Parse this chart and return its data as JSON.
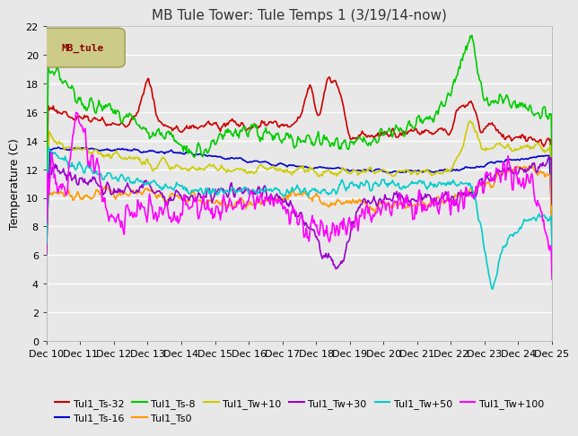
{
  "title": "MB Tule Tower: Tule Temps 1 (3/19/14-now)",
  "ylabel": "Temperature (C)",
  "xlim": [
    0,
    25
  ],
  "ylim": [
    0,
    22
  ],
  "yticks": [
    0,
    2,
    4,
    6,
    8,
    10,
    12,
    14,
    16,
    18,
    20,
    22
  ],
  "xtick_labels": [
    "Dec 10",
    "Dec 11",
    "Dec 12",
    "Dec 13",
    "Dec 14",
    "Dec 15",
    "Dec 16",
    "Dec 17",
    "Dec 18",
    "Dec 19",
    "Dec 20",
    "Dec 21",
    "Dec 22",
    "Dec 23",
    "Dec 24",
    "Dec 25"
  ],
  "background_color": "#e8e8e8",
  "plot_bg_color": "#e8e8e8",
  "grid_color": "#ffffff",
  "series": {
    "Tul1_Ts-32": {
      "color": "#cc0000",
      "lw": 1.2
    },
    "Tul1_Ts-16": {
      "color": "#0000cc",
      "lw": 1.2
    },
    "Tul1_Ts-8": {
      "color": "#00cc00",
      "lw": 1.2
    },
    "Tul1_Ts0": {
      "color": "#ff9900",
      "lw": 1.2
    },
    "Tul1_Tw+10": {
      "color": "#cccc00",
      "lw": 1.2
    },
    "Tul1_Tw+30": {
      "color": "#9900cc",
      "lw": 1.2
    },
    "Tul1_Tw+50": {
      "color": "#00cccc",
      "lw": 1.2
    },
    "Tul1_Tw+100": {
      "color": "#ff00ff",
      "lw": 1.2
    }
  },
  "legend_box_facecolor": "#cccc88",
  "legend_box_edgecolor": "#999955",
  "legend_text": "MB_tule",
  "legend_text_color": "#880000",
  "title_fontsize": 11,
  "axis_label_fontsize": 9,
  "tick_fontsize": 8,
  "legend_fontsize": 8
}
